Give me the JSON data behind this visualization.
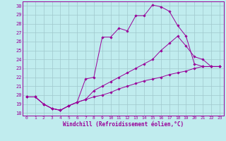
{
  "xlabel": "Windchill (Refroidissement éolien,°C)",
  "xlim": [
    -0.5,
    23.5
  ],
  "ylim": [
    17.7,
    30.5
  ],
  "xticks": [
    0,
    1,
    2,
    3,
    4,
    5,
    6,
    7,
    8,
    9,
    10,
    11,
    12,
    13,
    14,
    15,
    16,
    17,
    18,
    19,
    20,
    21,
    22,
    23
  ],
  "yticks": [
    18,
    19,
    20,
    21,
    22,
    23,
    24,
    25,
    26,
    27,
    28,
    29,
    30
  ],
  "bg_color": "#c0ecee",
  "line_color": "#990099",
  "grid_color": "#a0c8cc",
  "line1": [
    [
      0,
      19.8
    ],
    [
      1,
      19.8
    ],
    [
      2,
      19.0
    ],
    [
      3,
      18.5
    ],
    [
      4,
      18.3
    ],
    [
      5,
      18.8
    ],
    [
      6,
      19.2
    ],
    [
      7,
      21.8
    ],
    [
      8,
      22.0
    ],
    [
      9,
      26.5
    ],
    [
      10,
      26.5
    ],
    [
      11,
      27.5
    ],
    [
      12,
      27.2
    ],
    [
      13,
      28.9
    ],
    [
      14,
      28.9
    ],
    [
      15,
      30.1
    ],
    [
      16,
      29.9
    ],
    [
      17,
      29.4
    ],
    [
      18,
      27.8
    ],
    [
      19,
      26.6
    ],
    [
      20,
      23.5
    ],
    [
      21,
      23.2
    ],
    [
      22,
      23.2
    ],
    [
      23,
      23.2
    ]
  ],
  "line2": [
    [
      0,
      19.8
    ],
    [
      1,
      19.8
    ],
    [
      2,
      19.0
    ],
    [
      3,
      18.5
    ],
    [
      4,
      18.3
    ],
    [
      5,
      18.8
    ],
    [
      6,
      19.2
    ],
    [
      7,
      19.5
    ],
    [
      8,
      20.5
    ],
    [
      9,
      21.0
    ],
    [
      10,
      21.5
    ],
    [
      11,
      22.0
    ],
    [
      12,
      22.5
    ],
    [
      13,
      23.0
    ],
    [
      14,
      23.5
    ],
    [
      15,
      24.0
    ],
    [
      16,
      25.0
    ],
    [
      17,
      25.8
    ],
    [
      18,
      26.6
    ],
    [
      19,
      25.5
    ],
    [
      20,
      24.3
    ],
    [
      21,
      24.0
    ],
    [
      22,
      23.2
    ],
    [
      23,
      23.2
    ]
  ],
  "line3": [
    [
      0,
      19.8
    ],
    [
      1,
      19.8
    ],
    [
      2,
      19.0
    ],
    [
      3,
      18.5
    ],
    [
      4,
      18.3
    ],
    [
      5,
      18.8
    ],
    [
      6,
      19.2
    ],
    [
      7,
      19.5
    ],
    [
      8,
      19.8
    ],
    [
      9,
      20.0
    ],
    [
      10,
      20.3
    ],
    [
      11,
      20.7
    ],
    [
      12,
      21.0
    ],
    [
      13,
      21.3
    ],
    [
      14,
      21.6
    ],
    [
      15,
      21.8
    ],
    [
      16,
      22.0
    ],
    [
      17,
      22.3
    ],
    [
      18,
      22.5
    ],
    [
      19,
      22.7
    ],
    [
      20,
      23.0
    ],
    [
      21,
      23.2
    ],
    [
      22,
      23.2
    ],
    [
      23,
      23.2
    ]
  ]
}
